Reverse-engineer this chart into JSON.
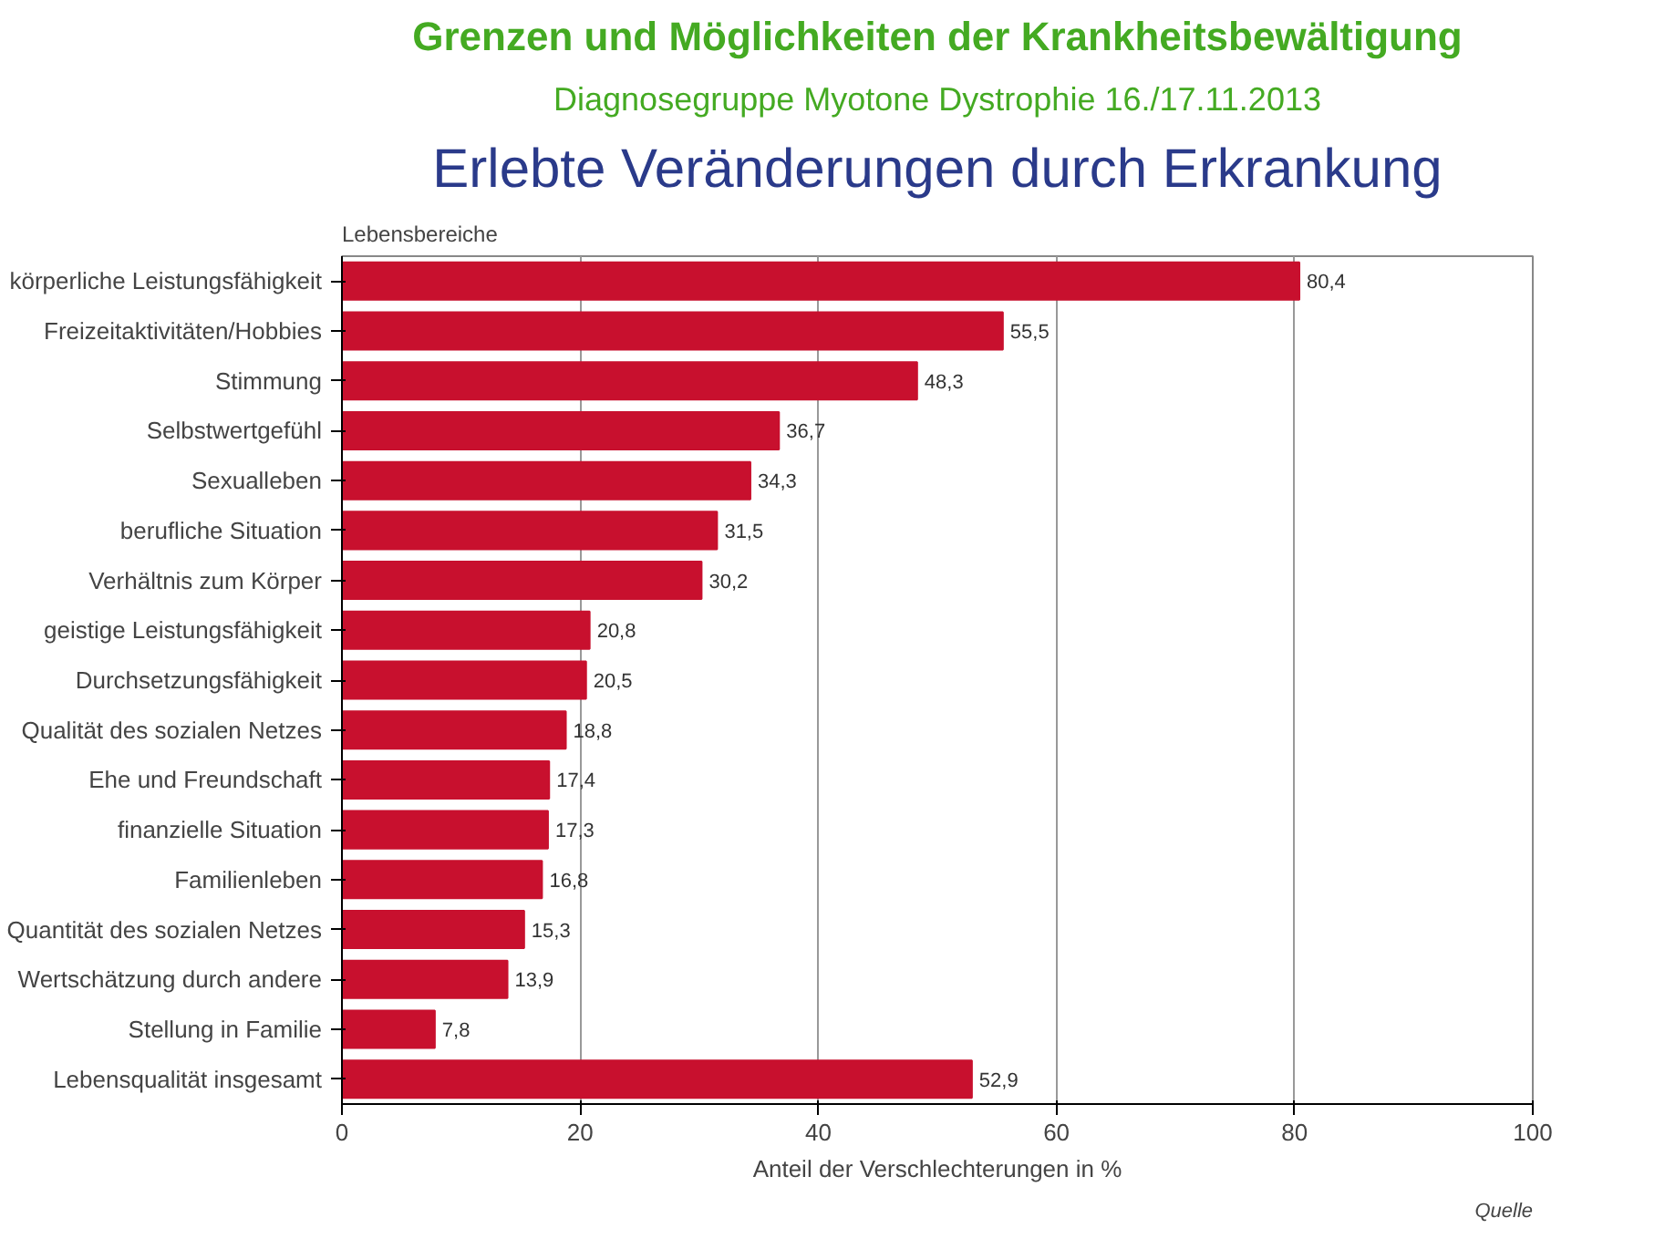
{
  "chart_data": {
    "type": "bar",
    "orientation": "horizontal",
    "title": "Grenzen und Möglichkeiten der Krankheitsbewältigung",
    "subtitle": "Diagnosegruppe Myotone Dystrophie 16./17.11.2013",
    "annotations": [
      "Erlebte Veränderungen durch Erkrankung",
      "Quelle"
    ],
    "ylabel": "Lebensbereiche",
    "xlabel": "Anteil der Verschlechterungen in %",
    "categories": [
      "körperliche Leistungsfähigkeit",
      "Freizeitaktivitäten/Hobbies",
      "Stimmung",
      "Selbstwertgefühl",
      "Sexualleben",
      "berufliche Situation",
      "Verhältnis zum Körper",
      "geistige Leistungsfähigkeit",
      "Durchsetzungsfähigkeit",
      "Qualität des sozialen Netzes",
      "Ehe und Freundschaft",
      "finanzielle Situation",
      "Familienleben",
      "Quantität des sozialen Netzes",
      "Wertschätzung durch andere",
      "Stellung in Familie",
      "Lebensqualität insgesamt"
    ],
    "values": [
      80.4,
      55.5,
      48.3,
      36.7,
      34.3,
      31.5,
      30.2,
      20.8,
      20.5,
      18.8,
      17.4,
      17.3,
      16.8,
      15.3,
      13.9,
      7.8,
      52.9
    ],
    "value_labels": [
      "80,4",
      "55,5",
      "48,3",
      "36,7",
      "34,3",
      "31,5",
      "30,2",
      "20,8",
      "20,5",
      "18,8",
      "17,4",
      "17,3",
      "16,8",
      "15,3",
      "13,9",
      "7,8",
      "52,9"
    ],
    "color": "#c8102e",
    "xlim": [
      0,
      100
    ],
    "xticks": [
      0,
      20,
      40,
      60,
      80,
      100
    ],
    "grid": "x"
  }
}
